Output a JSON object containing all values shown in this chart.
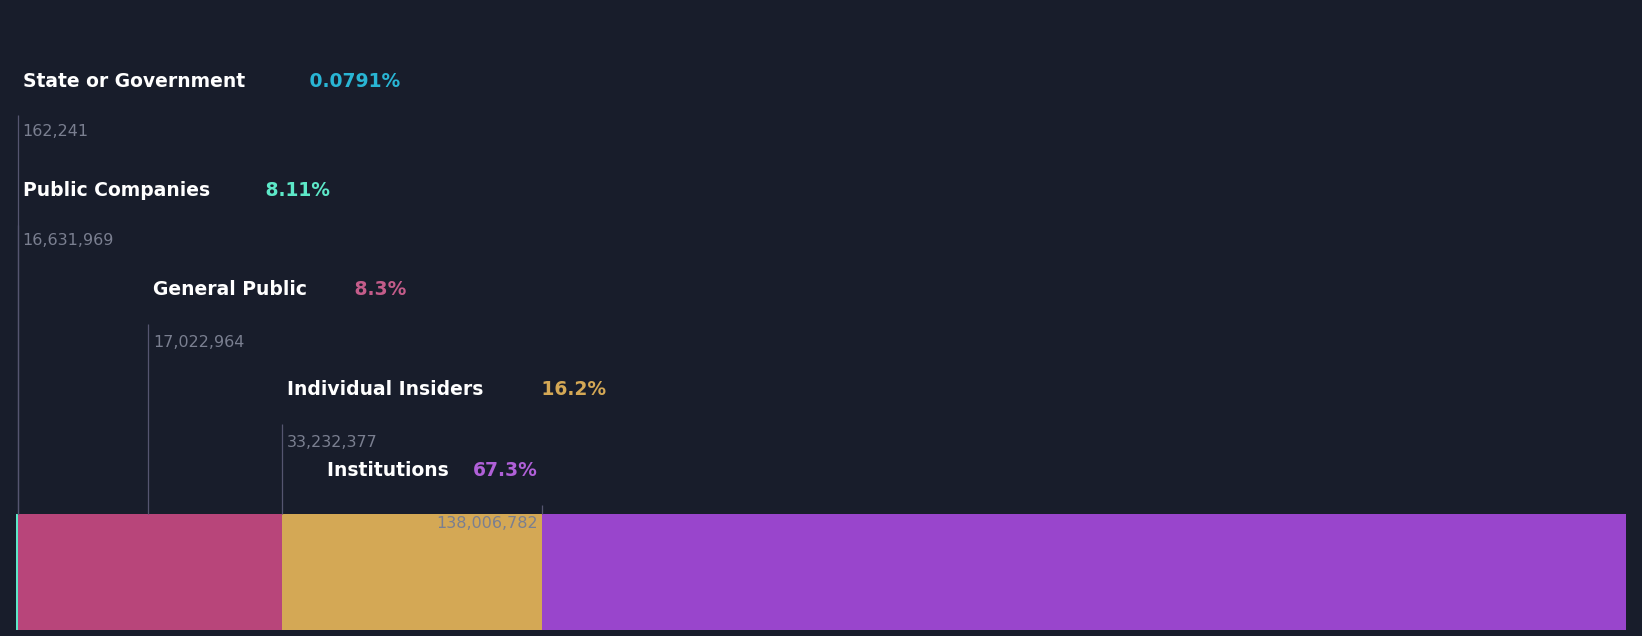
{
  "segments": [
    {
      "label": "State or Government",
      "pct": "0.0791%",
      "value": "162,241",
      "pct_num": 0.0791,
      "pct_color": "#29b5d4",
      "bar_color": "#5de8c8"
    },
    {
      "label": "Public Companies",
      "pct": "8.11%",
      "value": "16,631,969",
      "pct_num": 8.11,
      "pct_color": "#5de8c8",
      "bar_color": "#b8457a"
    },
    {
      "label": "General Public",
      "pct": "8.3%",
      "value": "17,022,964",
      "pct_num": 8.3,
      "pct_color": "#c45c8a",
      "bar_color": "#b8457a"
    },
    {
      "label": "Individual Insiders",
      "pct": "16.2%",
      "value": "33,232,377",
      "pct_num": 16.2,
      "pct_color": "#d4a855",
      "bar_color": "#d4a855"
    },
    {
      "label": "Institutions",
      "pct": "67.3%",
      "value": "138,006,782",
      "pct_num": 67.3,
      "pct_color": "#b060d8",
      "bar_color": "#9945cc"
    }
  ],
  "bg_color": "#181d2b",
  "text_color": "#ffffff",
  "value_color": "#7a7f90",
  "line_color": "#555570",
  "figsize": [
    16.42,
    6.36
  ],
  "dpi": 100
}
